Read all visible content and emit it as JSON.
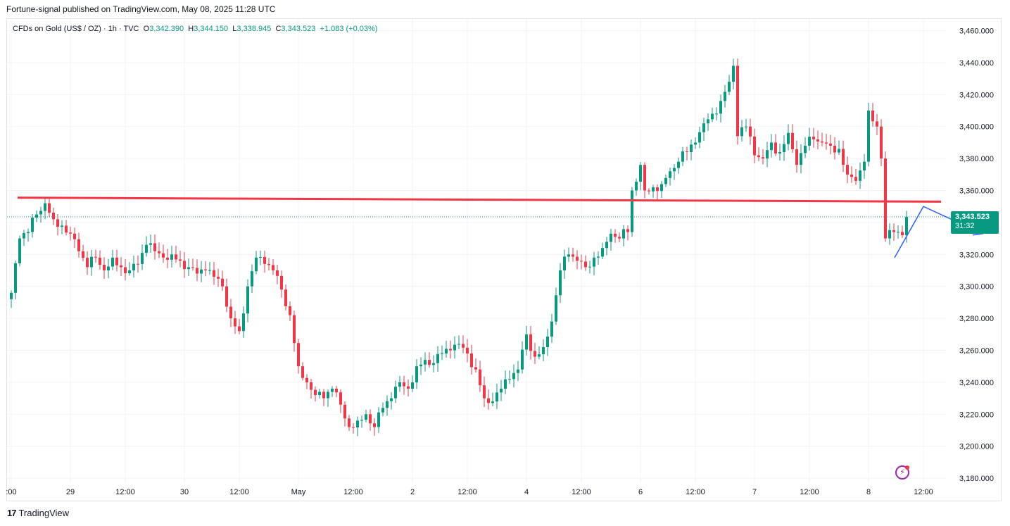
{
  "header": {
    "publisher_line": "Fortune-signal published on TradingView.com, May 08, 2025 11:28 UTC"
  },
  "legend": {
    "symbol": "CFDs on Gold (US$ / OZ) · 1h · TVC",
    "open_label": "O",
    "open": "3,342.390",
    "high_label": "H",
    "high": "3,344.150",
    "low_label": "L",
    "low": "3,338.945",
    "close_label": "C",
    "close": "3,343.523",
    "change": "+1.083 (+0.03%)"
  },
  "price_tag": {
    "price": "3,343.523",
    "countdown": "31:32"
  },
  "branding": {
    "logo": "17",
    "name": "TradingView"
  },
  "colors": {
    "up": "#089981",
    "down": "#f23645",
    "resistance": "#f23645",
    "projection": "#2962ff",
    "grid": "#f0f3fa"
  },
  "chart_data": {
    "type": "candlestick",
    "title": "CFDs on Gold (US$ / OZ) · 1h · TVC",
    "ylim": [
      3175,
      3465
    ],
    "y_ticks": [
      "3,460.000",
      "3,440.000",
      "3,420.000",
      "3,400.000",
      "3,380.000",
      "3,360.000",
      "3,340.000",
      "3,320.000",
      "3,300.000",
      "3,280.000",
      "3,260.000",
      "3,240.000",
      "3,220.000",
      "3,200.000",
      "3,180.000"
    ],
    "y_tick_values": [
      3460,
      3440,
      3420,
      3400,
      3380,
      3360,
      3340,
      3320,
      3300,
      3280,
      3260,
      3240,
      3220,
      3200,
      3180
    ],
    "x_ticks": [
      ":00",
      "29",
      "12:00",
      "30",
      "12:00",
      "May",
      "12:00",
      "2",
      "12:00",
      "4",
      "12:00",
      "6",
      "12:00",
      "7",
      "12:00",
      "8",
      "12:00"
    ],
    "x_tick_bars": [
      0,
      14,
      27,
      41,
      54,
      68,
      81,
      95,
      108,
      122,
      135,
      149,
      162,
      176,
      189,
      203,
      216
    ],
    "grid": true,
    "current_price": 3343.523,
    "resistance_level": 3354,
    "projection": {
      "from_bar": 210,
      "points": [
        3318,
        3350,
        3333
      ]
    },
    "anchors": [
      [
        0,
        3296
      ],
      [
        2,
        3330
      ],
      [
        4,
        3334
      ],
      [
        6,
        3345
      ],
      [
        8,
        3352
      ],
      [
        10,
        3342
      ],
      [
        12,
        3338
      ],
      [
        14,
        3333
      ],
      [
        16,
        3322
      ],
      [
        18,
        3312
      ],
      [
        20,
        3318
      ],
      [
        22,
        3310
      ],
      [
        24,
        3318
      ],
      [
        26,
        3312
      ],
      [
        28,
        3310
      ],
      [
        30,
        3314
      ],
      [
        32,
        3326
      ],
      [
        34,
        3322
      ],
      [
        36,
        3318
      ],
      [
        38,
        3320
      ],
      [
        40,
        3316
      ],
      [
        42,
        3312
      ],
      [
        44,
        3308
      ],
      [
        46,
        3310
      ],
      [
        48,
        3306
      ],
      [
        50,
        3300
      ],
      [
        52,
        3280
      ],
      [
        54,
        3272
      ],
      [
        56,
        3300
      ],
      [
        58,
        3318
      ],
      [
        60,
        3314
      ],
      [
        62,
        3310
      ],
      [
        64,
        3298
      ],
      [
        66,
        3282
      ],
      [
        68,
        3250
      ],
      [
        70,
        3240
      ],
      [
        72,
        3232
      ],
      [
        74,
        3230
      ],
      [
        76,
        3236
      ],
      [
        78,
        3226
      ],
      [
        80,
        3212
      ],
      [
        82,
        3216
      ],
      [
        84,
        3220
      ],
      [
        86,
        3212
      ],
      [
        88,
        3224
      ],
      [
        90,
        3230
      ],
      [
        92,
        3240
      ],
      [
        94,
        3236
      ],
      [
        96,
        3250
      ],
      [
        98,
        3254
      ],
      [
        100,
        3252
      ],
      [
        102,
        3258
      ],
      [
        104,
        3260
      ],
      [
        106,
        3264
      ],
      [
        108,
        3258
      ],
      [
        110,
        3248
      ],
      [
        112,
        3230
      ],
      [
        114,
        3228
      ],
      [
        116,
        3236
      ],
      [
        118,
        3242
      ],
      [
        120,
        3248
      ],
      [
        122,
        3270
      ],
      [
        124,
        3256
      ],
      [
        126,
        3262
      ],
      [
        128,
        3278
      ],
      [
        130,
        3310
      ],
      [
        132,
        3320
      ],
      [
        134,
        3316
      ],
      [
        136,
        3312
      ],
      [
        138,
        3318
      ],
      [
        140,
        3324
      ],
      [
        142,
        3333
      ],
      [
        144,
        3330
      ],
      [
        146,
        3334
      ],
      [
        147,
        3360
      ],
      [
        149,
        3376
      ],
      [
        150,
        3360
      ],
      [
        152,
        3362
      ],
      [
        154,
        3364
      ],
      [
        156,
        3372
      ],
      [
        158,
        3378
      ],
      [
        160,
        3384
      ],
      [
        162,
        3390
      ],
      [
        164,
        3402
      ],
      [
        166,
        3408
      ],
      [
        168,
        3416
      ],
      [
        170,
        3428
      ],
      [
        171,
        3438
      ],
      [
        172,
        3394
      ],
      [
        174,
        3400
      ],
      [
        176,
        3382
      ],
      [
        178,
        3380
      ],
      [
        180,
        3390
      ],
      [
        182,
        3384
      ],
      [
        184,
        3396
      ],
      [
        186,
        3376
      ],
      [
        188,
        3388
      ],
      [
        190,
        3392
      ],
      [
        192,
        3390
      ],
      [
        194,
        3388
      ],
      [
        196,
        3386
      ],
      [
        198,
        3370
      ],
      [
        200,
        3366
      ],
      [
        202,
        3378
      ],
      [
        203,
        3410
      ],
      [
        205,
        3400
      ],
      [
        206,
        3380
      ],
      [
        207,
        3330
      ],
      [
        209,
        3334
      ],
      [
        211,
        3332
      ],
      [
        212,
        3343.5
      ]
    ]
  }
}
